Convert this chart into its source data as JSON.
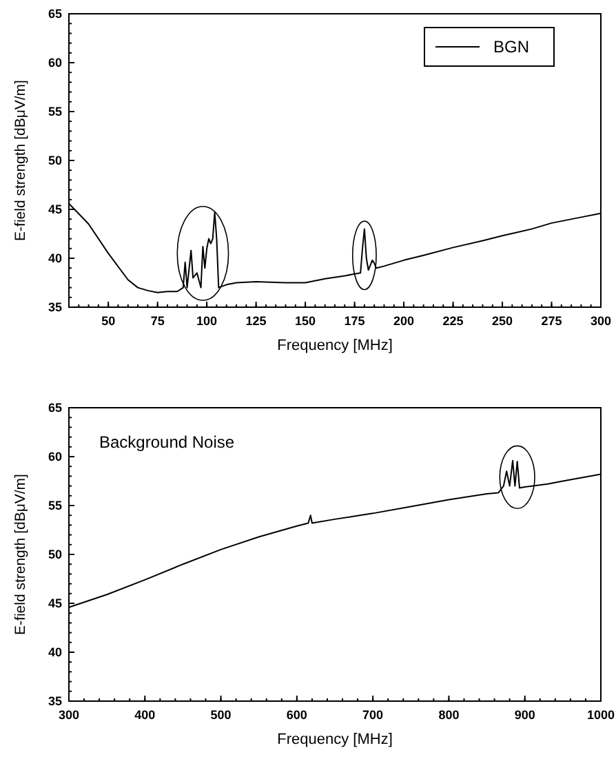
{
  "chart_data": [
    {
      "type": "line",
      "xlabel": "Frequency [MHz]",
      "ylabel": "E-field strength [dBμV/m]",
      "xlim": [
        30,
        300
      ],
      "ylim": [
        35,
        65
      ],
      "xticks": [
        50,
        75,
        100,
        125,
        150,
        175,
        200,
        225,
        250,
        275,
        300
      ],
      "yticks": [
        35,
        40,
        45,
        50,
        55,
        60,
        65
      ],
      "legend": "top right",
      "series": [
        {
          "name": "BGN",
          "color": "#000000",
          "x": [
            30,
            40,
            50,
            60,
            65,
            70,
            75,
            80,
            85,
            88,
            89,
            90,
            92,
            93,
            95,
            97,
            98,
            99,
            100,
            101,
            102,
            103,
            104,
            105,
            106,
            110,
            115,
            125,
            140,
            150,
            160,
            170,
            175,
            178,
            179,
            180,
            181,
            182,
            184,
            185,
            186,
            190,
            200,
            210,
            225,
            240,
            250,
            265,
            275,
            290,
            300
          ],
          "values": [
            45.6,
            43.5,
            40.5,
            37.8,
            37,
            36.7,
            36.5,
            36.6,
            36.6,
            37,
            39.6,
            37,
            40.8,
            38,
            38.5,
            37,
            41.2,
            39,
            41,
            42,
            41.5,
            42,
            44.7,
            42,
            37,
            37.3,
            37.5,
            37.6,
            37.5,
            37.5,
            37.9,
            38.2,
            38.4,
            38.5,
            41,
            43,
            40,
            38.8,
            39.8,
            39.5,
            39,
            39.2,
            39.8,
            40.3,
            41.1,
            41.8,
            42.3,
            43,
            43.6,
            44.2,
            44.6
          ]
        }
      ]
    },
    {
      "type": "line",
      "xlabel": "Frequency [MHz]",
      "ylabel": "E-field strength [dBμV/m]",
      "xlim": [
        300,
        1000
      ],
      "ylim": [
        35,
        65
      ],
      "xticks": [
        300,
        400,
        500,
        600,
        700,
        800,
        900,
        1000
      ],
      "yticks": [
        35,
        40,
        45,
        50,
        55,
        60,
        65
      ],
      "annotations": [
        "Background Noise"
      ],
      "series": [
        {
          "color": "#000000",
          "x": [
            300,
            350,
            400,
            450,
            500,
            550,
            600,
            615,
            618,
            620,
            650,
            700,
            750,
            800,
            850,
            865,
            872,
            876,
            880,
            884,
            887,
            890,
            893,
            900,
            930,
            950,
            1000
          ],
          "values": [
            44.6,
            45.9,
            47.4,
            49,
            50.5,
            51.8,
            52.9,
            53.2,
            54,
            53.2,
            53.6,
            54.2,
            54.9,
            55.6,
            56.2,
            56.3,
            57,
            58.5,
            57,
            59.6,
            57,
            59.5,
            56.8,
            56.9,
            57.2,
            57.5,
            58.2
          ]
        }
      ]
    }
  ]
}
